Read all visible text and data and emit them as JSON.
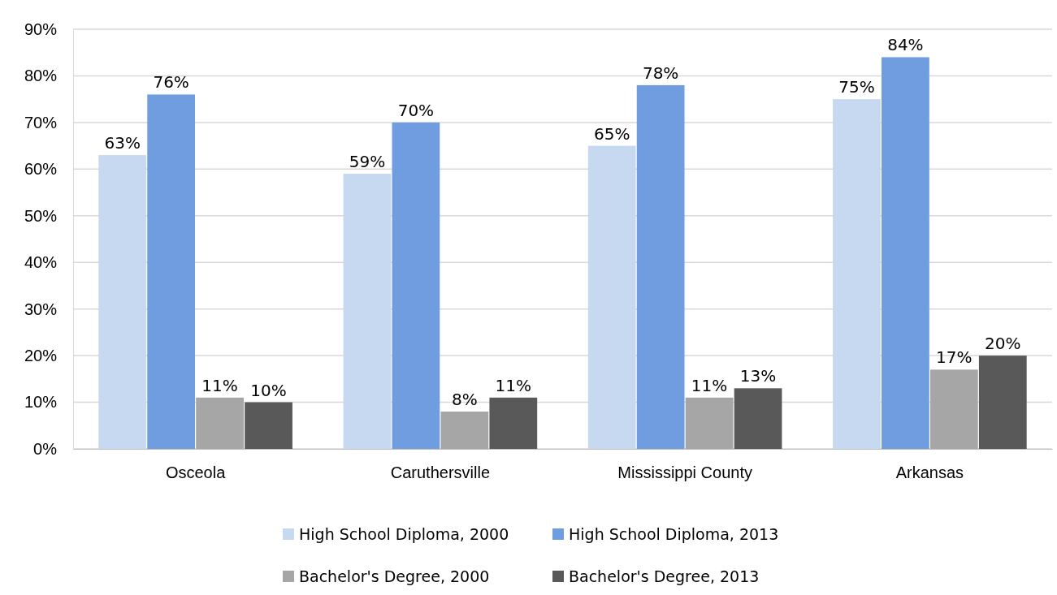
{
  "chart_data": {
    "type": "bar",
    "categories": [
      "Osceola",
      "Caruthersville",
      "Mississippi County",
      "Arkansas"
    ],
    "series": [
      {
        "name": "High School Diploma, 2000",
        "color": "#c6d9f1",
        "values": [
          63,
          59,
          65,
          75
        ],
        "value_labels": [
          "63%",
          "59%",
          "65%",
          "75%"
        ]
      },
      {
        "name": "High School Diploma, 2013",
        "color": "#6f9de0",
        "values": [
          76,
          70,
          78,
          84
        ],
        "value_labels": [
          "76%",
          "70%",
          "78%",
          "84%"
        ]
      },
      {
        "name": "Bachelor's Degree, 2000",
        "color": "#a6a6a6",
        "values": [
          11,
          8,
          11,
          17
        ],
        "value_labels": [
          "11%",
          "8%",
          "11%",
          "17%"
        ]
      },
      {
        "name": "Bachelor's Degree, 2013",
        "color": "#595959",
        "values": [
          10,
          11,
          13,
          20
        ],
        "value_labels": [
          "10%",
          "11%",
          "13%",
          "20%"
        ]
      }
    ],
    "ylim": [
      0,
      90
    ],
    "yticks": [
      {
        "value": 0,
        "label": "0%"
      },
      {
        "value": 10,
        "label": "10%"
      },
      {
        "value": 20,
        "label": "20%"
      },
      {
        "value": 30,
        "label": "30%"
      },
      {
        "value": 40,
        "label": "40%"
      },
      {
        "value": 50,
        "label": "50%"
      },
      {
        "value": 60,
        "label": "60%"
      },
      {
        "value": 70,
        "label": "70%"
      },
      {
        "value": 80,
        "label": "80%"
      },
      {
        "value": 90,
        "label": "90%"
      }
    ],
    "grid": "y",
    "legend": "bottom"
  }
}
